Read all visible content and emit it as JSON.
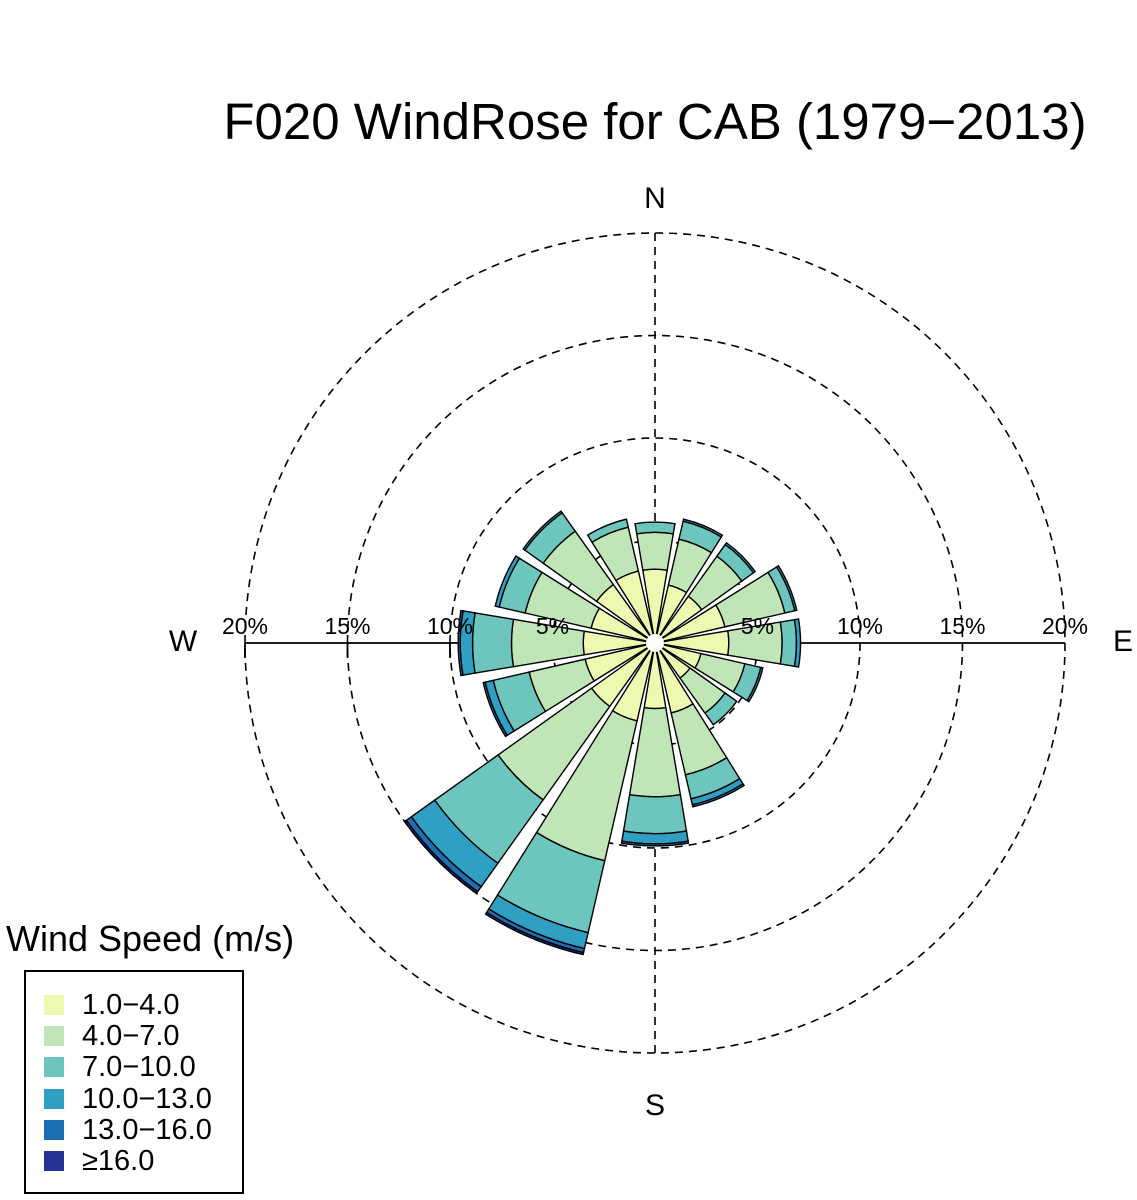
{
  "title": "F020 WindRose for CAB (1979−2013)",
  "legend": {
    "title": "Wind Speed (m/s)",
    "items": [
      {
        "label": "1.0−4.0",
        "color": "#edf8b1"
      },
      {
        "label": "4.0−7.0",
        "color": "#c0e6b7"
      },
      {
        "label": "7.0−10.0",
        "color": "#6cc6be"
      },
      {
        "label": "10.0−13.0",
        "color": "#2fa0c3"
      },
      {
        "label": "13.0−16.0",
        "color": "#1d6fb1"
      },
      {
        "label": "≥16.0",
        "color": "#253494"
      }
    ]
  },
  "chart_data": {
    "type": "windrose",
    "title": "F020 WindRose for CAB (1979−2013)",
    "compass": [
      "N",
      "E",
      "S",
      "W"
    ],
    "radial_ticks": [
      5,
      10,
      15,
      20
    ],
    "radial_tick_labels": [
      "5%",
      "10%",
      "15%",
      "20%"
    ],
    "radial_max": 20,
    "directions": [
      0,
      22.5,
      45,
      67.5,
      90,
      112.5,
      135,
      157.5,
      180,
      202.5,
      225,
      247.5,
      270,
      292.5,
      315,
      337.5
    ],
    "speed_bins": [
      "1.0−4.0",
      "4.0−7.0",
      "7.0−10.0",
      "10.0−13.0",
      "13.0−16.0",
      "≥16.0"
    ],
    "cumulative_percent": [
      [
        3.6,
        5.4,
        5.9,
        5.9,
        5.9,
        5.9
      ],
      [
        2.9,
        5.2,
        6.1,
        6.2,
        6.2,
        6.2
      ],
      [
        2.8,
        5.2,
        5.9,
        6.0,
        6.0,
        6.0
      ],
      [
        3.5,
        6.5,
        7.0,
        7.1,
        7.1,
        7.1
      ],
      [
        3.6,
        6.2,
        6.9,
        7.1,
        7.1,
        7.1
      ],
      [
        2.3,
        4.5,
        5.3,
        5.4,
        5.4,
        5.4
      ],
      [
        2.1,
        4.2,
        4.9,
        4.9,
        4.9,
        4.9
      ],
      [
        3.5,
        6.6,
        7.8,
        8.1,
        8.2,
        8.2
      ],
      [
        3.2,
        7.5,
        9.3,
        9.8,
        9.9,
        9.9
      ],
      [
        3.9,
        10.9,
        14.5,
        15.3,
        15.5,
        15.6
      ],
      [
        3.8,
        9.4,
        13.2,
        14.6,
        14.9,
        15.0
      ],
      [
        3.5,
        6.3,
        8.1,
        8.5,
        8.6,
        8.6
      ],
      [
        3.5,
        7.0,
        8.9,
        9.5,
        9.6,
        9.6
      ],
      [
        3.2,
        6.5,
        7.8,
        8.0,
        8.0,
        8.0
      ],
      [
        3.5,
        6.7,
        7.8,
        7.9,
        7.9,
        7.9
      ],
      [
        3.6,
        5.8,
        6.2,
        6.2,
        6.2,
        6.2
      ]
    ]
  }
}
